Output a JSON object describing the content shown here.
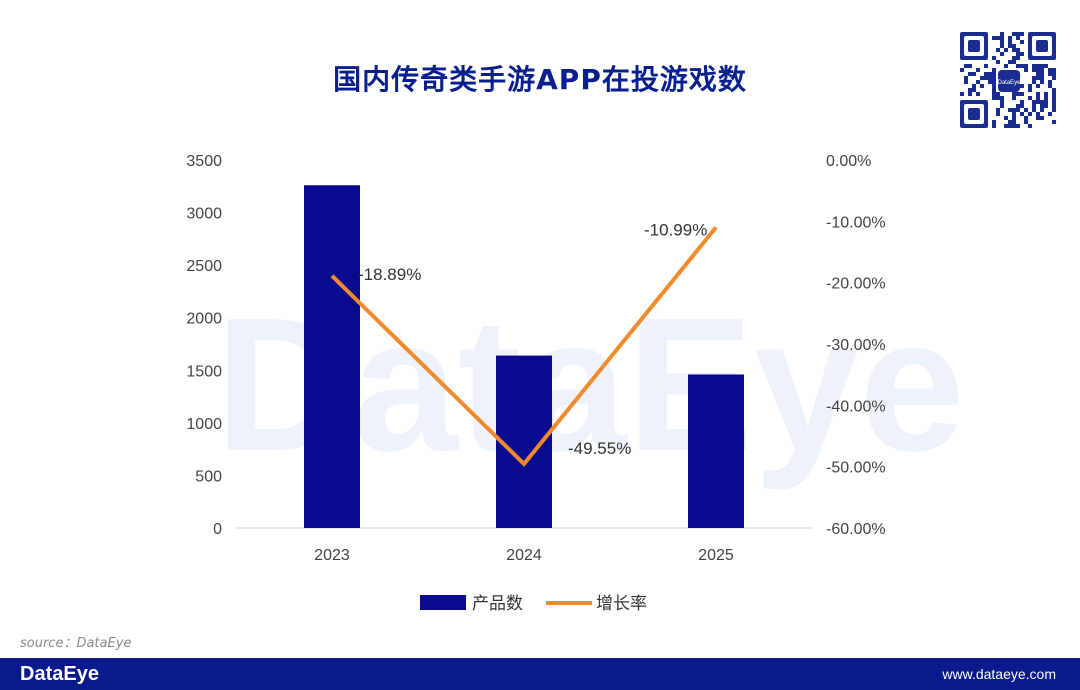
{
  "title": "国内传奇类手游APP在投游戏数",
  "watermark": "DataEye",
  "source": "source：DataEye",
  "footer": {
    "brand": "DataEye",
    "url": "www.dataeye.com"
  },
  "qr": {
    "label": "DataEye"
  },
  "colors": {
    "bar": "#0a0a8e",
    "line": "#f08a2c",
    "title": "#0a1f8f",
    "footer": "#0a1a8c"
  },
  "chart_data": {
    "type": "bar",
    "categories": [
      "2023",
      "2024",
      "2025"
    ],
    "series": [
      {
        "name": "产品数",
        "type": "bar",
        "axis": "left",
        "values": [
          3260,
          1640,
          1460
        ]
      },
      {
        "name": "增长率",
        "type": "line",
        "axis": "right",
        "values": [
          -18.89,
          -49.55,
          -10.99
        ]
      }
    ],
    "data_labels": [
      "-18.89%",
      "-49.55%",
      "-10.99%"
    ],
    "y_left": {
      "min": 0,
      "max": 3500,
      "ticks": [
        "0",
        "500",
        "1000",
        "1500",
        "2000",
        "2500",
        "3000",
        "3500"
      ]
    },
    "y_right": {
      "min": -60,
      "max": 0,
      "ticks": [
        "-60.00%",
        "-50.00%",
        "-40.00%",
        "-30.00%",
        "-20.00%",
        "-10.00%",
        "0.00%"
      ]
    },
    "legend": {
      "position": "bottom"
    },
    "grid": false
  }
}
